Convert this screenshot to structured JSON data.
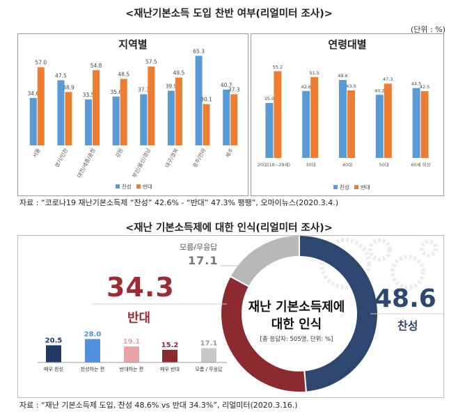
{
  "section1": {
    "title": "<재난기본소득 도입 찬반 여부(리얼미터 조사)>",
    "unit": "(단위 : %)",
    "source": "자료 : “코로나19 재난기본소득제 “찬성” 42.6% - “반대” 47.3% 팽팽”, 오마이뉴스(2020.3.4.)"
  },
  "section2": {
    "title": "<재난 기본소득제에 대한 인식(리얼미터 조사)>",
    "source": "자료 : “재난 기본소득제 도입, 찬성 48.6% vs 반대 34.3%”, 리얼미터(2020.3.16.)",
    "center_text": [
      "재난 기본소득제에",
      "대한 인식"
    ],
    "respondent_note": "[총 응답자: 505명, 단위: %]",
    "against_big": "34.3",
    "against_label": "반대",
    "for_big": "48.6",
    "for_label": "찬성",
    "undecided_label": "모름/무응답",
    "undecided_big": "17.1"
  },
  "colors": {
    "approve": "#5b9bd5",
    "oppose": "#ed7d31",
    "donut_for": "#2e4770",
    "donut_against": "#8b2a2f",
    "donut_undecided": "#b8b8b8",
    "against_text": "#9b2c33",
    "for_text": "#2e4770"
  },
  "chart_data": [
    {
      "type": "bar",
      "title": "지역별",
      "categories": [
        "서울",
        "경기/인천",
        "대전/세종/충청",
        "강원",
        "부산/울산/경남",
        "대구/경북",
        "광주/전라",
        "제주"
      ],
      "series": [
        {
          "name": "찬성",
          "values": [
            34.6,
            47.5,
            33.5,
            35.6,
            37.3,
            39.9,
            65.3,
            40.7
          ]
        },
        {
          "name": "반대",
          "values": [
            57.0,
            38.9,
            54.8,
            48.5,
            57.5,
            49.5,
            30.1,
            37.3
          ]
        }
      ],
      "ylim": [
        0,
        70
      ],
      "legend": "bottom"
    },
    {
      "type": "bar",
      "title": "연령대별",
      "categories": [
        "20대(18~29세)",
        "30대",
        "40대",
        "50대",
        "60세 이상"
      ],
      "series": [
        {
          "name": "찬성",
          "values": [
            35.0,
            42.6,
            49.6,
            40.2,
            44.5
          ]
        },
        {
          "name": "반대",
          "values": [
            55.2,
            51.5,
            43.0,
            47.3,
            42.5
          ]
        }
      ],
      "ylim": [
        0,
        70
      ],
      "legend": "bottom"
    },
    {
      "type": "pie",
      "labels": [
        "찬성",
        "반대",
        "모름/무응답"
      ],
      "values": [
        48.6,
        34.3,
        17.1
      ]
    },
    {
      "type": "bar",
      "categories": [
        "매우 찬성",
        "찬성하는 편",
        "반대하는 편",
        "매우 반대",
        "모름 / 무응답"
      ],
      "values": [
        20.5,
        28.0,
        19.1,
        15.2,
        17.1
      ],
      "colors": [
        "#1f3864",
        "#4f8fdc",
        "#e8a4a4",
        "#8b2a2f",
        "#c8c8c8"
      ],
      "ylim": [
        0,
        30
      ]
    }
  ]
}
